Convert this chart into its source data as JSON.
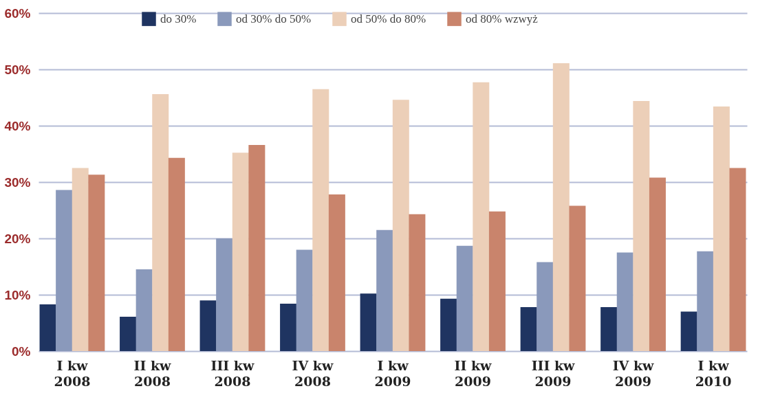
{
  "chart_data": {
    "type": "bar",
    "categories": [
      "I kw 2008",
      "II kw 2008",
      "III kw 2008",
      "IV kw 2008",
      "I kw 2009",
      "II kw 2009",
      "III kw 2009",
      "IV kw 2009",
      "I kw 2010"
    ],
    "series": [
      {
        "name": "do 30%",
        "color": "#1f3461",
        "values": [
          8.3,
          6.1,
          9.0,
          8.4,
          10.2,
          9.3,
          7.8,
          7.8,
          7.0
        ]
      },
      {
        "name": "od 30% do 50%",
        "color": "#8a99bb",
        "values": [
          28.6,
          14.5,
          20.0,
          18.0,
          21.5,
          18.7,
          15.8,
          17.5,
          17.7
        ]
      },
      {
        "name": "od 50% do 80%",
        "color": "#eccfb8",
        "values": [
          32.5,
          45.6,
          35.2,
          46.5,
          44.6,
          47.7,
          51.1,
          44.4,
          43.4
        ]
      },
      {
        "name": "od 80% wzwyż",
        "color": "#c9846c",
        "values": [
          31.3,
          34.3,
          36.6,
          27.8,
          24.3,
          24.8,
          25.8,
          30.8,
          32.5
        ]
      }
    ],
    "ylim": [
      0,
      60
    ],
    "yticks": [
      {
        "value": 0,
        "label": "0%"
      },
      {
        "value": 10,
        "label": "10%"
      },
      {
        "value": 20,
        "label": "20%"
      },
      {
        "value": 30,
        "label": "30%"
      },
      {
        "value": 40,
        "label": "40%"
      },
      {
        "value": 50,
        "label": "50%"
      },
      {
        "value": 60,
        "label": "60%"
      }
    ],
    "grid": "y",
    "legend": "top"
  }
}
